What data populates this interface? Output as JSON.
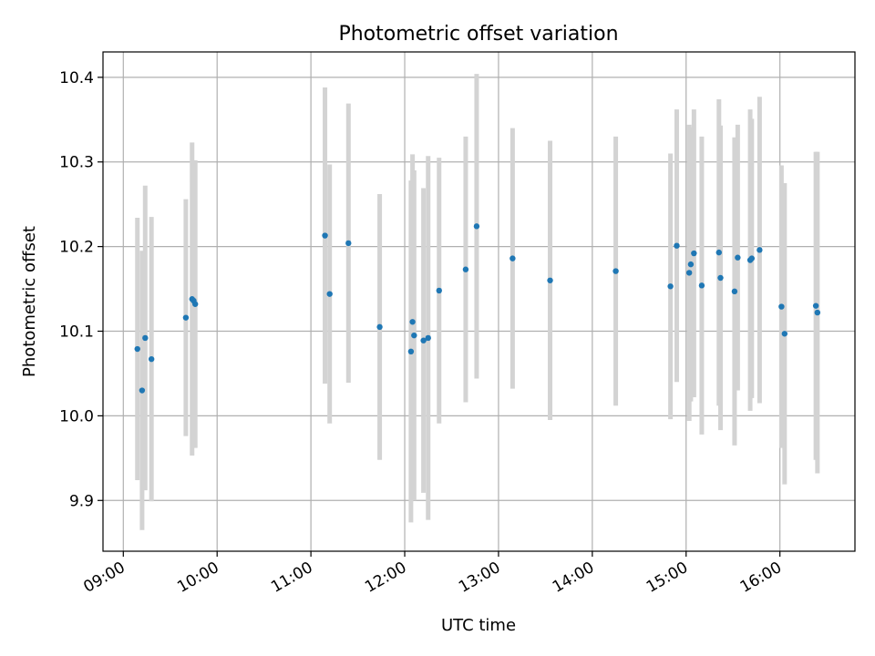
{
  "chart_data": {
    "type": "scatter",
    "title": "Photometric offset variation",
    "xlabel": "UTC time",
    "ylabel": "Photometric offset",
    "xlim": [
      "08:47",
      "16:48"
    ],
    "ylim": [
      9.84,
      10.43
    ],
    "xticks": [
      "09:00",
      "10:00",
      "11:00",
      "12:00",
      "13:00",
      "14:00",
      "15:00",
      "16:00"
    ],
    "yticks": [
      9.9,
      10.0,
      10.1,
      10.2,
      10.3,
      10.4
    ],
    "grid": true,
    "point_color": "#1f77b4",
    "errorbar_color": "#d3d3d3",
    "points": [
      {
        "x": "09:09",
        "y": 10.079,
        "yerr": 0.155
      },
      {
        "x": "09:12",
        "y": 10.03,
        "yerr": 0.165
      },
      {
        "x": "09:14",
        "y": 10.092,
        "yerr": 0.18
      },
      {
        "x": "09:18",
        "y": 10.067,
        "yerr": 0.168
      },
      {
        "x": "09:40",
        "y": 10.116,
        "yerr": 0.14
      },
      {
        "x": "09:44",
        "y": 10.138,
        "yerr": 0.185
      },
      {
        "x": "09:45",
        "y": 10.136,
        "yerr": 0.14
      },
      {
        "x": "09:46",
        "y": 10.132,
        "yerr": 0.17
      },
      {
        "x": "11:09",
        "y": 10.213,
        "yerr": 0.175
      },
      {
        "x": "11:12",
        "y": 10.144,
        "yerr": 0.153
      },
      {
        "x": "11:24",
        "y": 10.204,
        "yerr": 0.165
      },
      {
        "x": "11:44",
        "y": 10.105,
        "yerr": 0.157
      },
      {
        "x": "12:04",
        "y": 10.076,
        "yerr": 0.202
      },
      {
        "x": "12:05",
        "y": 10.111,
        "yerr": 0.198
      },
      {
        "x": "12:06",
        "y": 10.095,
        "yerr": 0.195
      },
      {
        "x": "12:12",
        "y": 10.089,
        "yerr": 0.18
      },
      {
        "x": "12:15",
        "y": 10.092,
        "yerr": 0.215
      },
      {
        "x": "12:22",
        "y": 10.148,
        "yerr": 0.157
      },
      {
        "x": "12:39",
        "y": 10.173,
        "yerr": 0.157
      },
      {
        "x": "12:46",
        "y": 10.224,
        "yerr": 0.18
      },
      {
        "x": "13:09",
        "y": 10.186,
        "yerr": 0.154
      },
      {
        "x": "13:33",
        "y": 10.16,
        "yerr": 0.165
      },
      {
        "x": "14:15",
        "y": 10.171,
        "yerr": 0.159
      },
      {
        "x": "14:50",
        "y": 10.153,
        "yerr": 0.157
      },
      {
        "x": "14:54",
        "y": 10.201,
        "yerr": 0.161
      },
      {
        "x": "15:02",
        "y": 10.169,
        "yerr": 0.175
      },
      {
        "x": "15:03",
        "y": 10.179,
        "yerr": 0.162
      },
      {
        "x": "15:05",
        "y": 10.192,
        "yerr": 0.17
      },
      {
        "x": "15:10",
        "y": 10.154,
        "yerr": 0.176
      },
      {
        "x": "15:21",
        "y": 10.193,
        "yerr": 0.181
      },
      {
        "x": "15:22",
        "y": 10.163,
        "yerr": 0.18
      },
      {
        "x": "15:31",
        "y": 10.147,
        "yerr": 0.182
      },
      {
        "x": "15:33",
        "y": 10.187,
        "yerr": 0.157
      },
      {
        "x": "15:41",
        "y": 10.184,
        "yerr": 0.178
      },
      {
        "x": "15:42",
        "y": 10.186,
        "yerr": 0.165
      },
      {
        "x": "15:47",
        "y": 10.196,
        "yerr": 0.181
      },
      {
        "x": "16:01",
        "y": 10.129,
        "yerr": 0.167
      },
      {
        "x": "16:03",
        "y": 10.097,
        "yerr": 0.178
      },
      {
        "x": "16:23",
        "y": 10.13,
        "yerr": 0.182
      },
      {
        "x": "16:24",
        "y": 10.122,
        "yerr": 0.19
      }
    ]
  }
}
